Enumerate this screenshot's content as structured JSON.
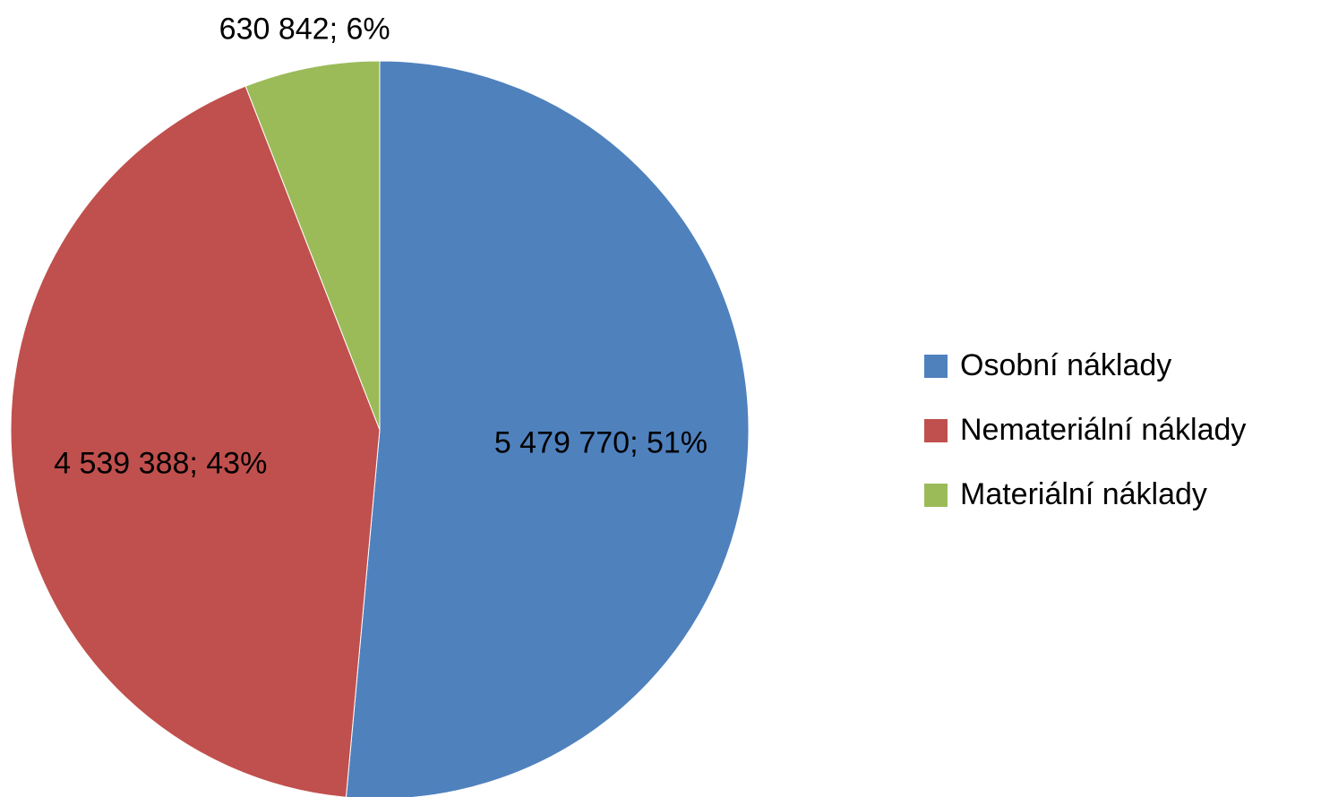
{
  "chart_data": {
    "type": "pie",
    "categories": [
      "Osobní náklady",
      "Nemateriální náklady",
      "Materiální náklady"
    ],
    "values": [
      5479770,
      4539388,
      630842
    ],
    "value_labels": [
      "5 479 770; 51%",
      "4 539 388; 43%",
      "630 842; 6%"
    ],
    "colors": [
      "#4f81bd",
      "#c0504d",
      "#9bbb59"
    ],
    "legend": "right"
  }
}
